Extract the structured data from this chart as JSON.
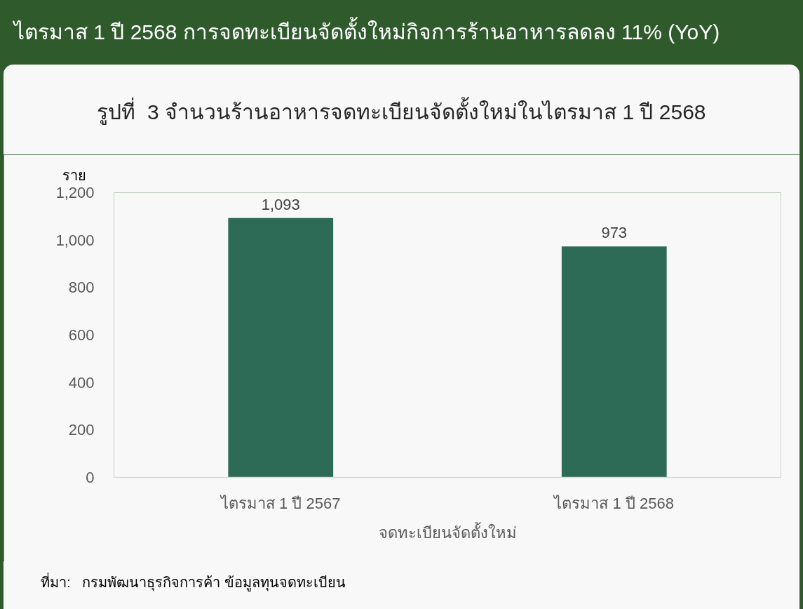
{
  "chart_data": {
    "type": "bar",
    "title": "ไตรมาส 1 ปี 2568 การจดทะเบียนจัดตั้งใหม่กิจการร้านอาหารลดลง 11% (YoY)",
    "subtitle": "รูปที่  3 จำนวนร้านอาหารจดทะเบียนจัดตั้งใหม่ในไตรมาส 1 ปี 2568",
    "ylabel": "ราย",
    "xlabel": "จดทะเบียนจัดตั้งใหม่",
    "categories": [
      "ไตรมาส 1 ปี 2567",
      "ไตรมาส 1 ปี 2568"
    ],
    "values": [
      1093,
      973
    ],
    "value_labels": [
      "1,093",
      "973"
    ],
    "color": "#2e6b57",
    "ylim": [
      0,
      1200
    ],
    "yticks": [
      0,
      200,
      400,
      600,
      800,
      {
        "value": 1000,
        "label": "1,000"
      },
      {
        "value": 1200,
        "label": "1,200"
      }
    ],
    "annotations": [
      "ที่มา:   กรมพัฒนาธุรกิจการค้า ข้อมูลทุนจดทะเบียน"
    ]
  }
}
